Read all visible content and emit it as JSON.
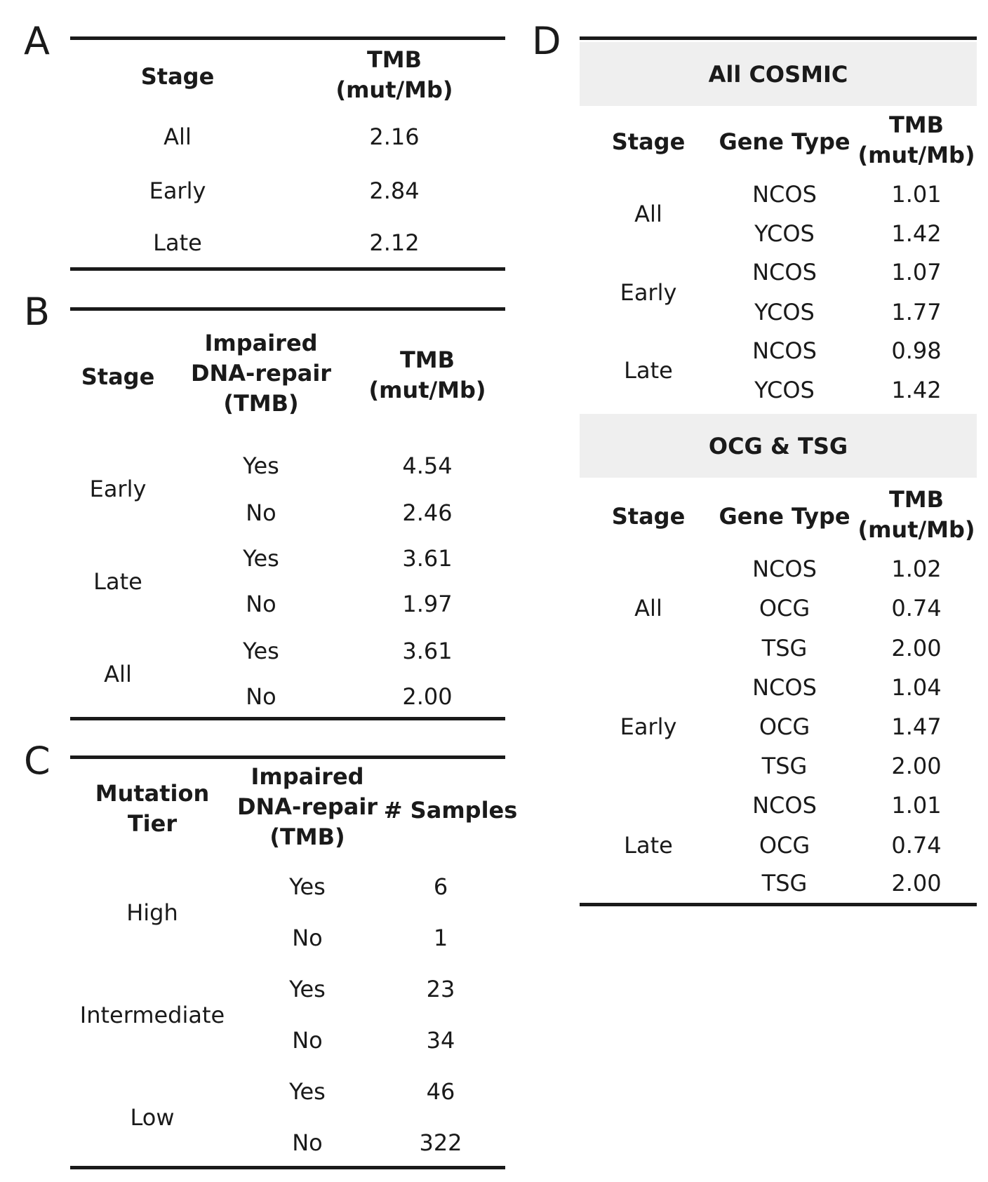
{
  "panelA": {
    "letter": "A",
    "headers": {
      "stage": "Stage",
      "tmb_line1": "TMB",
      "tmb_line2": "(mut/Mb)"
    },
    "rows": [
      {
        "stage": "All",
        "tmb": "2.16"
      },
      {
        "stage": "Early",
        "tmb": "2.84"
      },
      {
        "stage": "Late",
        "tmb": "2.12"
      }
    ]
  },
  "panelB": {
    "letter": "B",
    "headers": {
      "stage": "Stage",
      "repair_line1": "Impaired",
      "repair_line2": "DNA-repair",
      "repair_line3": "(TMB)",
      "tmb_line1": "TMB",
      "tmb_line2": "(mut/Mb)"
    },
    "groups": [
      {
        "stage": "Early",
        "rows": [
          {
            "repair": "Yes",
            "tmb": "4.54"
          },
          {
            "repair": "No",
            "tmb": "2.46"
          }
        ]
      },
      {
        "stage": "Late",
        "rows": [
          {
            "repair": "Yes",
            "tmb": "3.61"
          },
          {
            "repair": "No",
            "tmb": "1.97"
          }
        ]
      },
      {
        "stage": "All",
        "rows": [
          {
            "repair": "Yes",
            "tmb": "3.61"
          },
          {
            "repair": "No",
            "tmb": "2.00"
          }
        ]
      }
    ]
  },
  "panelC": {
    "letter": "C",
    "headers": {
      "tier_line1": "Mutation",
      "tier_line2": "Tier",
      "repair_line1": "Impaired",
      "repair_line2": "DNA-repair",
      "repair_line3": "(TMB)",
      "samples": "# Samples"
    },
    "groups": [
      {
        "tier": "High",
        "rows": [
          {
            "repair": "Yes",
            "samples": "6"
          },
          {
            "repair": "No",
            "samples": "1"
          }
        ]
      },
      {
        "tier": "Intermediate",
        "rows": [
          {
            "repair": "Yes",
            "samples": "23"
          },
          {
            "repair": "No",
            "samples": "34"
          }
        ]
      },
      {
        "tier": "Low",
        "rows": [
          {
            "repair": "Yes",
            "samples": "46"
          },
          {
            "repair": "No",
            "samples": "322"
          }
        ]
      }
    ]
  },
  "panelD": {
    "letter": "D",
    "section1": {
      "title": "All COSMIC",
      "headers": {
        "stage": "Stage",
        "gene_type": "Gene Type",
        "tmb_line1": "TMB",
        "tmb_line2": "(mut/Mb)"
      },
      "groups": [
        {
          "stage": "All",
          "rows": [
            {
              "gene": "NCOS",
              "tmb": "1.01"
            },
            {
              "gene": "YCOS",
              "tmb": "1.42"
            }
          ]
        },
        {
          "stage": "Early",
          "rows": [
            {
              "gene": "NCOS",
              "tmb": "1.07"
            },
            {
              "gene": "YCOS",
              "tmb": "1.77"
            }
          ]
        },
        {
          "stage": "Late",
          "rows": [
            {
              "gene": "NCOS",
              "tmb": "0.98"
            },
            {
              "gene": "YCOS",
              "tmb": "1.42"
            }
          ]
        }
      ]
    },
    "section2": {
      "title": "OCG & TSG",
      "headers": {
        "stage": "Stage",
        "gene_type": "Gene Type",
        "tmb_line1": "TMB",
        "tmb_line2": "(mut/Mb)"
      },
      "groups": [
        {
          "stage": "All",
          "rows": [
            {
              "gene": "NCOS",
              "tmb": "1.02"
            },
            {
              "gene": "OCG",
              "tmb": "0.74"
            },
            {
              "gene": "TSG",
              "tmb": "2.00"
            }
          ]
        },
        {
          "stage": "Early",
          "rows": [
            {
              "gene": "NCOS",
              "tmb": "1.04"
            },
            {
              "gene": "OCG",
              "tmb": "1.47"
            },
            {
              "gene": "TSG",
              "tmb": "2.00"
            }
          ]
        },
        {
          "stage": "Late",
          "rows": [
            {
              "gene": "NCOS",
              "tmb": "1.01"
            },
            {
              "gene": "OCG",
              "tmb": "0.74"
            },
            {
              "gene": "TSG",
              "tmb": "2.00"
            }
          ]
        }
      ]
    }
  }
}
